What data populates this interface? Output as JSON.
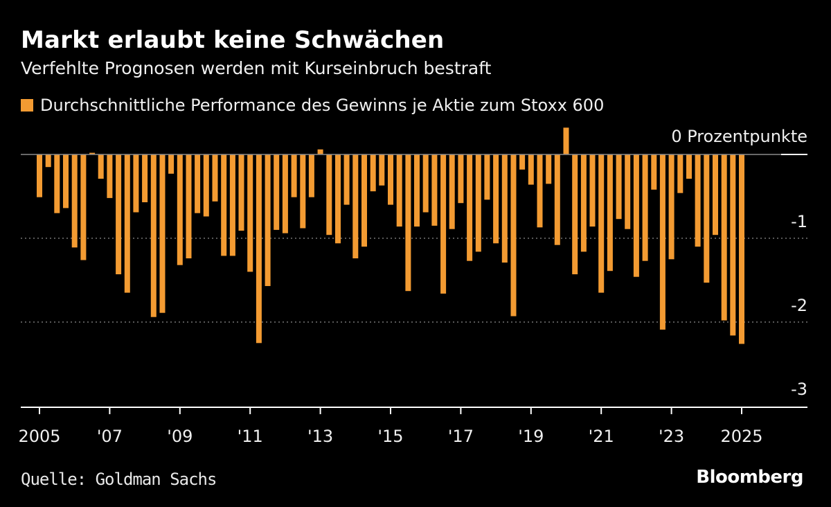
{
  "title": "Markt erlaubt keine Schwächen",
  "subtitle": "Verfehlte Prognosen werden mit Kurseinbruch bestraft",
  "legend_label": "Durchschnittliche Performance des Gewinns je Aktie zum Stoxx 600",
  "source": "Quelle: Goldman Sachs",
  "brand": "Bloomberg",
  "colors": {
    "background": "#000000",
    "bar": "#f39b32",
    "gridline": "#777777",
    "axis": "#ffffff"
  },
  "chart_data": {
    "type": "bar",
    "title": "Markt erlaubt keine Schwächen",
    "subtitle": "Verfehlte Prognosen werden mit Kurseinbruch bestraft",
    "series": [
      {
        "name": "Durchschnittliche Performance des Gewinns je Aktie zum Stoxx 600",
        "values": [
          -0.51,
          -0.15,
          -0.7,
          -0.64,
          -1.11,
          -1.26,
          0.02,
          -0.29,
          -0.52,
          -1.43,
          -1.65,
          -0.69,
          -0.57,
          -1.94,
          -1.89,
          -0.23,
          -1.32,
          -1.24,
          -0.7,
          -0.74,
          -0.56,
          -1.21,
          -1.21,
          -0.91,
          -1.4,
          -2.25,
          -1.57,
          -0.9,
          -0.94,
          -0.51,
          -0.88,
          -0.51,
          0.06,
          -0.96,
          -1.06,
          -0.6,
          -1.24,
          -1.1,
          -0.44,
          -0.37,
          -0.6,
          -0.86,
          -1.63,
          -0.86,
          -0.69,
          -0.85,
          -1.66,
          -0.89,
          -0.58,
          -1.27,
          -1.16,
          -0.54,
          -1.06,
          -1.29,
          -1.93,
          -0.18,
          -0.36,
          -0.87,
          -0.35,
          -1.08,
          0.32,
          -1.43,
          -1.16,
          -0.86,
          -1.65,
          -1.39,
          -0.77,
          -0.89,
          -1.46,
          -1.27,
          -0.42,
          -2.09,
          -1.25,
          -0.46,
          -0.29,
          -1.1,
          -1.53,
          -0.96,
          -1.98,
          -2.16,
          -2.26
        ]
      }
    ],
    "value_unit": "Prozentpunkte",
    "ylim": [
      -3,
      0.35
    ],
    "y_ticks": [
      {
        "value": 0,
        "label": "0 Prozentpunkte"
      },
      {
        "value": -1,
        "label": "-1"
      },
      {
        "value": -2,
        "label": "-2"
      },
      {
        "value": -3,
        "label": "-3"
      }
    ],
    "x_range": [
      2005,
      2026.2
    ],
    "x_ticks": [
      {
        "value": 2005,
        "label": "2005"
      },
      {
        "value": 2007,
        "label": "'07"
      },
      {
        "value": 2009,
        "label": "'09"
      },
      {
        "value": 2011,
        "label": "'11"
      },
      {
        "value": 2013,
        "label": "'13"
      },
      {
        "value": 2015,
        "label": "'15"
      },
      {
        "value": 2017,
        "label": "'17"
      },
      {
        "value": 2019,
        "label": "'19"
      },
      {
        "value": 2021,
        "label": "'21"
      },
      {
        "value": 2023,
        "label": "'23"
      },
      {
        "value": 2025,
        "label": "2025"
      }
    ],
    "first_period": 2005.0,
    "period_step": 0.25,
    "grid": "dotted horizontal at -1 and -2",
    "legend": "top-left"
  }
}
